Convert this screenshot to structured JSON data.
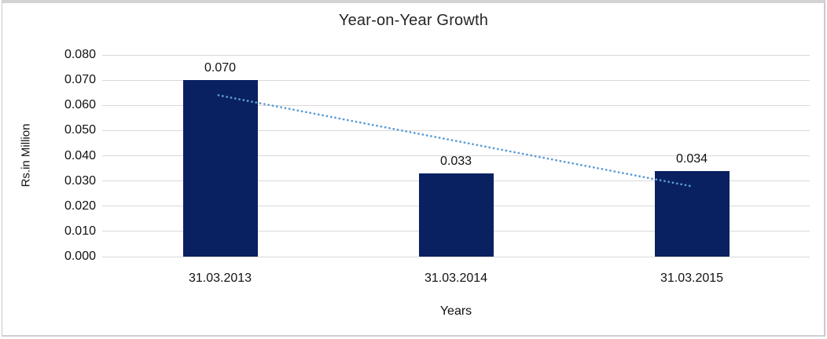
{
  "chart_data": {
    "type": "bar",
    "title": "Year-on-Year Growth",
    "xlabel": "Years",
    "ylabel": "Rs.in Million",
    "categories": [
      "31.03.2013",
      "31.03.2014",
      "31.03.2015"
    ],
    "values": [
      0.07,
      0.033,
      0.034
    ],
    "data_labels": [
      "0.070",
      "0.033",
      "0.034"
    ],
    "yticks": [
      "0.080",
      "0.070",
      "0.060",
      "0.050",
      "0.040",
      "0.030",
      "0.020",
      "0.010",
      "0.000"
    ],
    "ylim": [
      0,
      0.08
    ],
    "ytick_step": 0.01,
    "grid": true,
    "legend": "none",
    "bar_color": "#0a2161",
    "gridline_color": "#d9d9d9",
    "trendline": {
      "type": "linear",
      "style": "dotted",
      "color": "#5b9bd5",
      "start_value": 0.064,
      "end_value": 0.028
    }
  }
}
